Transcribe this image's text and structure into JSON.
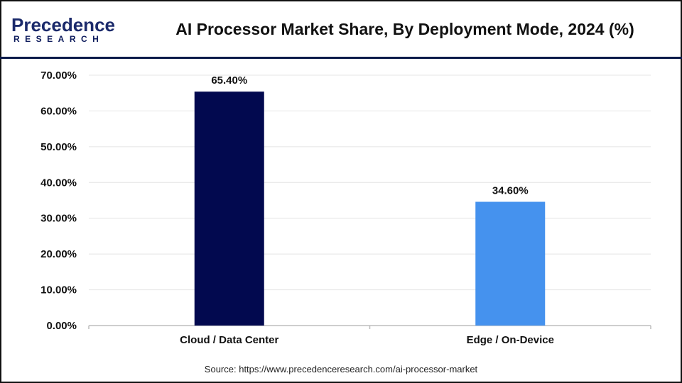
{
  "logo": {
    "line1": "Precedence",
    "line2": "RESEARCH"
  },
  "chart_data": {
    "type": "bar",
    "title": "AI Processor Market Share, By Deployment Mode, 2024 (%)",
    "categories": [
      "Cloud / Data Center",
      "Edge / On-Device"
    ],
    "values": [
      65.4,
      34.6
    ],
    "data_labels": [
      "65.40%",
      "34.60%"
    ],
    "colors": [
      "#02094f",
      "#4592ee"
    ],
    "ylim": [
      0,
      70
    ],
    "yticks": [
      "0.00%",
      "10.00%",
      "20.00%",
      "30.00%",
      "40.00%",
      "50.00%",
      "60.00%",
      "70.00%"
    ],
    "grid": true,
    "xlabel": "",
    "ylabel": ""
  },
  "source": "Source: https://www.precedenceresearch.com/ai-processor-market"
}
